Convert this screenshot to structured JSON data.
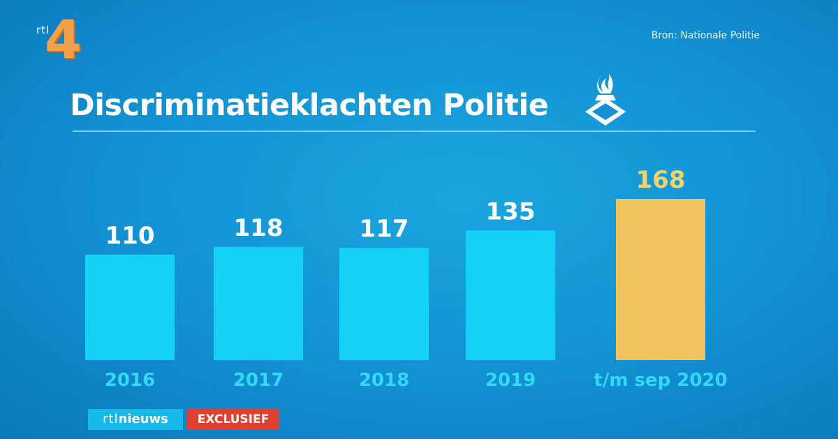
{
  "branding": {
    "channel_logo_prefix": "rtl",
    "channel_logo_number": "4",
    "news_prefix": "rtl",
    "news_suffix": "nieuws",
    "exclusive_label": "EXCLUSIEF"
  },
  "source": "Bron: Nationale Politie",
  "icon": "police-emblem-icon",
  "colors": {
    "background": "#1290d2",
    "bar": "#13d2f6",
    "highlight_bar": "#f1c35f",
    "highlight_label": "#f1d36a",
    "category_label": "#33d9fa",
    "exclusive_badge": "#e0412f"
  },
  "chart_data": {
    "type": "bar",
    "title": "Discriminatieklachten Politie",
    "categories": [
      "2016",
      "2017",
      "2018",
      "2019",
      "t/m sep 2020"
    ],
    "values": [
      110,
      118,
      117,
      135,
      168
    ],
    "highlight_index": 4,
    "ylim": [
      0,
      168
    ],
    "grid": false,
    "legend": "none"
  }
}
